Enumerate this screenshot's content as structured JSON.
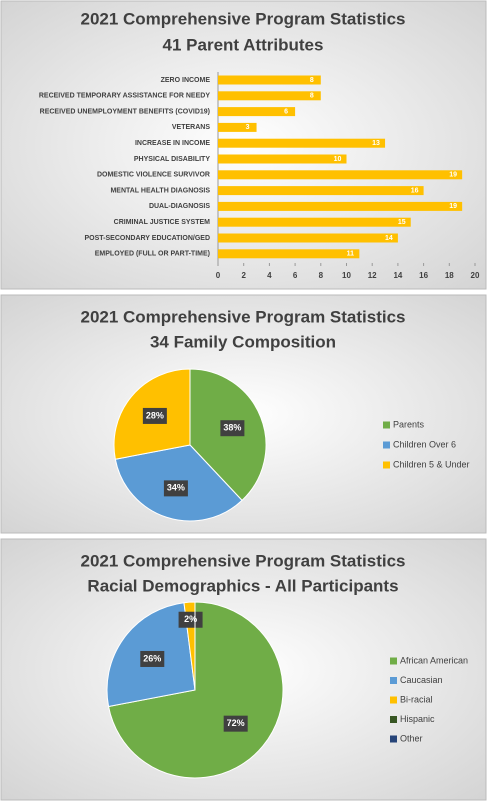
{
  "chart_data": [
    {
      "type": "bar",
      "orientation": "horizontal",
      "title": "2021 Comprehensive Program Statistics",
      "subtitle": "41 Parent Attributes",
      "categories": [
        "ZERO INCOME",
        "RECEIVED TEMPORARY ASSISTANCE FOR NEEDY",
        "RECEIVED UNEMPLOYMENT BENEFITS (COVID19)",
        "VETERANS",
        "INCREASE IN INCOME",
        "PHYSICAL DISABILITY",
        "DOMESTIC VIOLENCE SURVIVOR",
        "MENTAL HEALTH DIAGNOSIS",
        "DUAL-DIAGNOSIS",
        "CRIMINAL JUSTICE SYSTEM",
        "POST-SECONDARY EDUCATION/GED",
        "EMPLOYED (FULL OR PART-TIME)"
      ],
      "values": [
        8,
        8,
        6,
        3,
        13,
        10,
        19,
        16,
        19,
        15,
        14,
        11
      ],
      "color": "#ffc000",
      "data_labels": true,
      "grid": false,
      "xlim": [
        0,
        20
      ],
      "xticks": [
        0,
        2,
        4,
        6,
        8,
        10,
        12,
        14,
        16,
        18,
        20
      ]
    },
    {
      "type": "pie",
      "title": "2021 Comprehensive Program Statistics",
      "subtitle": "34 Family Composition",
      "categories": [
        "Parents",
        "Children Over 6",
        "Children 5 & Under"
      ],
      "values": [
        38,
        34,
        28
      ],
      "value_labels": [
        "38%",
        "34%",
        "28%"
      ],
      "colors": [
        "#70ad47",
        "#5b9bd5",
        "#ffc000"
      ],
      "legend": "right"
    },
    {
      "type": "pie",
      "title": "2021 Comprehensive Program Statistics",
      "subtitle": "Racial Demographics -  All Participants",
      "categories": [
        "African American",
        "Caucasian",
        "Bi-racial",
        "Hispanic",
        "Other"
      ],
      "values": [
        72,
        26,
        2,
        0,
        0
      ],
      "value_labels": [
        "72%",
        "26%",
        "2%",
        null,
        null
      ],
      "colors": [
        "#70ad47",
        "#5b9bd5",
        "#ffc000",
        "#375623",
        "#264478"
      ],
      "legend": "right"
    }
  ]
}
